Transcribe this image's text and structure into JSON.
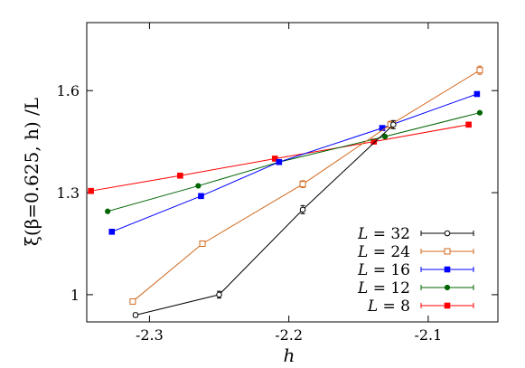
{
  "chart_data": {
    "type": "scatter",
    "xlabel": "h",
    "ylabel": "ξ(β=0.625, h) /L",
    "xlim": [
      -2.345,
      -2.05
    ],
    "ylim": [
      0.92,
      1.8
    ],
    "x_ticks": [
      -2.3,
      -2.2,
      -2.1
    ],
    "x_tick_labels": [
      "-2.3",
      "-2.2",
      "-2.1"
    ],
    "y_ticks": [
      1.0,
      1.3,
      1.6
    ],
    "y_tick_labels": [
      "1",
      "1.3",
      "1.6"
    ],
    "grid": false,
    "legend_position": "bottom-right",
    "series": [
      {
        "name": "L = 32",
        "color": "#000000",
        "marker": "circle-open",
        "x": [
          -2.31,
          -2.25,
          -2.19,
          -2.125
        ],
        "y": [
          0.94,
          1.0,
          1.25,
          1.5
        ],
        "err": [
          0.006,
          0.01,
          0.012,
          0.012
        ]
      },
      {
        "name": "L = 24",
        "color": "#d2691e",
        "marker": "square-open",
        "x": [
          -2.312,
          -2.262,
          -2.19,
          -2.127,
          -2.063
        ],
        "y": [
          0.98,
          1.15,
          1.325,
          1.5,
          1.66
        ],
        "err": [
          0.007,
          0.008,
          0.01,
          0.01,
          0.012
        ]
      },
      {
        "name": "L = 16",
        "color": "#0000ff",
        "marker": "square-filled",
        "x": [
          -2.327,
          -2.263,
          -2.207,
          -2.133,
          -2.065
        ],
        "y": [
          1.185,
          1.29,
          1.39,
          1.49,
          1.59
        ],
        "err": [
          0.004,
          0.004,
          0.004,
          0.004,
          0.004
        ]
      },
      {
        "name": "L = 12",
        "color": "#006400",
        "marker": "circle-filled",
        "x": [
          -2.33,
          -2.265,
          -2.207,
          -2.131,
          -2.063
        ],
        "y": [
          1.245,
          1.32,
          1.39,
          1.465,
          1.535
        ],
        "err": [
          0.003,
          0.003,
          0.003,
          0.003,
          0.003
        ]
      },
      {
        "name": "L = 8",
        "color": "#ff0000",
        "marker": "square-filled",
        "x": [
          -2.342,
          -2.278,
          -2.21,
          -2.139,
          -2.071
        ],
        "y": [
          1.305,
          1.35,
          1.4,
          1.45,
          1.5
        ],
        "err": [
          0.002,
          0.002,
          0.002,
          0.002,
          0.002
        ]
      }
    ]
  }
}
